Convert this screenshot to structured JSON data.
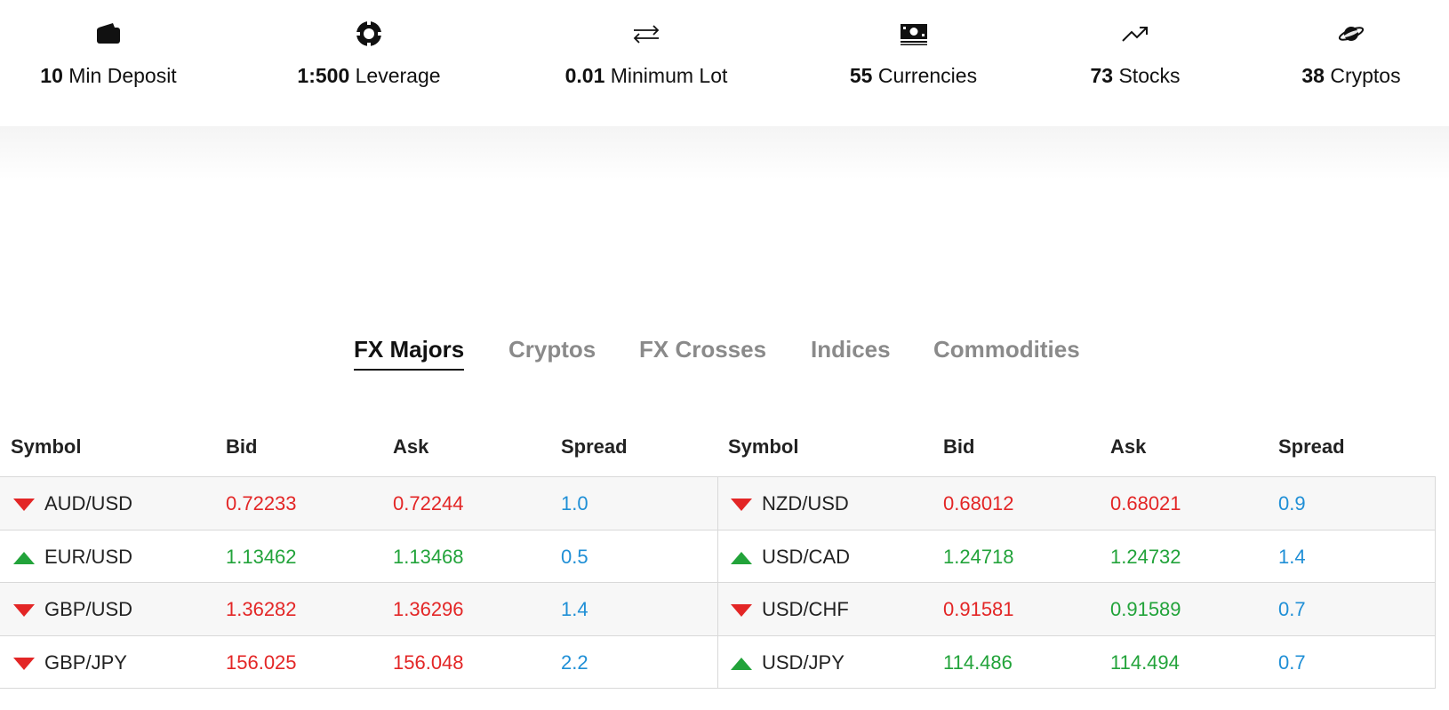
{
  "features": [
    {
      "value": "10",
      "label": "Min Deposit",
      "icon": "wallet-icon"
    },
    {
      "value": "1:500",
      "label": "Leverage",
      "icon": "target-icon"
    },
    {
      "value": "0.01",
      "label": "Minimum Lot",
      "icon": "exchange-arrows-icon"
    },
    {
      "value": "55",
      "label": "Currencies",
      "icon": "banknote-icon"
    },
    {
      "value": "73",
      "label": "Stocks",
      "icon": "trending-up-icon"
    },
    {
      "value": "38",
      "label": "Cryptos",
      "icon": "planet-icon"
    }
  ],
  "tabs": [
    {
      "label": "FX Majors",
      "active": true
    },
    {
      "label": "Cryptos",
      "active": false
    },
    {
      "label": "FX Crosses",
      "active": false
    },
    {
      "label": "Indices",
      "active": false
    },
    {
      "label": "Commodities",
      "active": false
    }
  ],
  "columns": [
    "Symbol",
    "Bid",
    "Ask",
    "Spread"
  ],
  "colors": {
    "down": "#e32626",
    "up": "#22a33a",
    "spread": "#1f8fd6",
    "active_tab": "#111111",
    "inactive_tab": "#8a8a8a"
  },
  "left_table": [
    {
      "symbol": "AUD/USD",
      "direction": "down",
      "bid": "0.72233",
      "bid_dir": "down",
      "ask": "0.72244",
      "ask_dir": "down",
      "spread": "1.0"
    },
    {
      "symbol": "EUR/USD",
      "direction": "up",
      "bid": "1.13462",
      "bid_dir": "up",
      "ask": "1.13468",
      "ask_dir": "up",
      "spread": "0.5"
    },
    {
      "symbol": "GBP/USD",
      "direction": "down",
      "bid": "1.36282",
      "bid_dir": "down",
      "ask": "1.36296",
      "ask_dir": "down",
      "spread": "1.4"
    },
    {
      "symbol": "GBP/JPY",
      "direction": "down",
      "bid": "156.025",
      "bid_dir": "down",
      "ask": "156.048",
      "ask_dir": "down",
      "spread": "2.2"
    }
  ],
  "right_table": [
    {
      "symbol": "NZD/USD",
      "direction": "down",
      "bid": "0.68012",
      "bid_dir": "down",
      "ask": "0.68021",
      "ask_dir": "down",
      "spread": "0.9"
    },
    {
      "symbol": "USD/CAD",
      "direction": "up",
      "bid": "1.24718",
      "bid_dir": "up",
      "ask": "1.24732",
      "ask_dir": "up",
      "spread": "1.4"
    },
    {
      "symbol": "USD/CHF",
      "direction": "down",
      "bid": "0.91581",
      "bid_dir": "down",
      "ask": "0.91589",
      "ask_dir": "up",
      "spread": "0.7"
    },
    {
      "symbol": "USD/JPY",
      "direction": "up",
      "bid": "114.486",
      "bid_dir": "up",
      "ask": "114.494",
      "ask_dir": "up",
      "spread": "0.7"
    }
  ]
}
